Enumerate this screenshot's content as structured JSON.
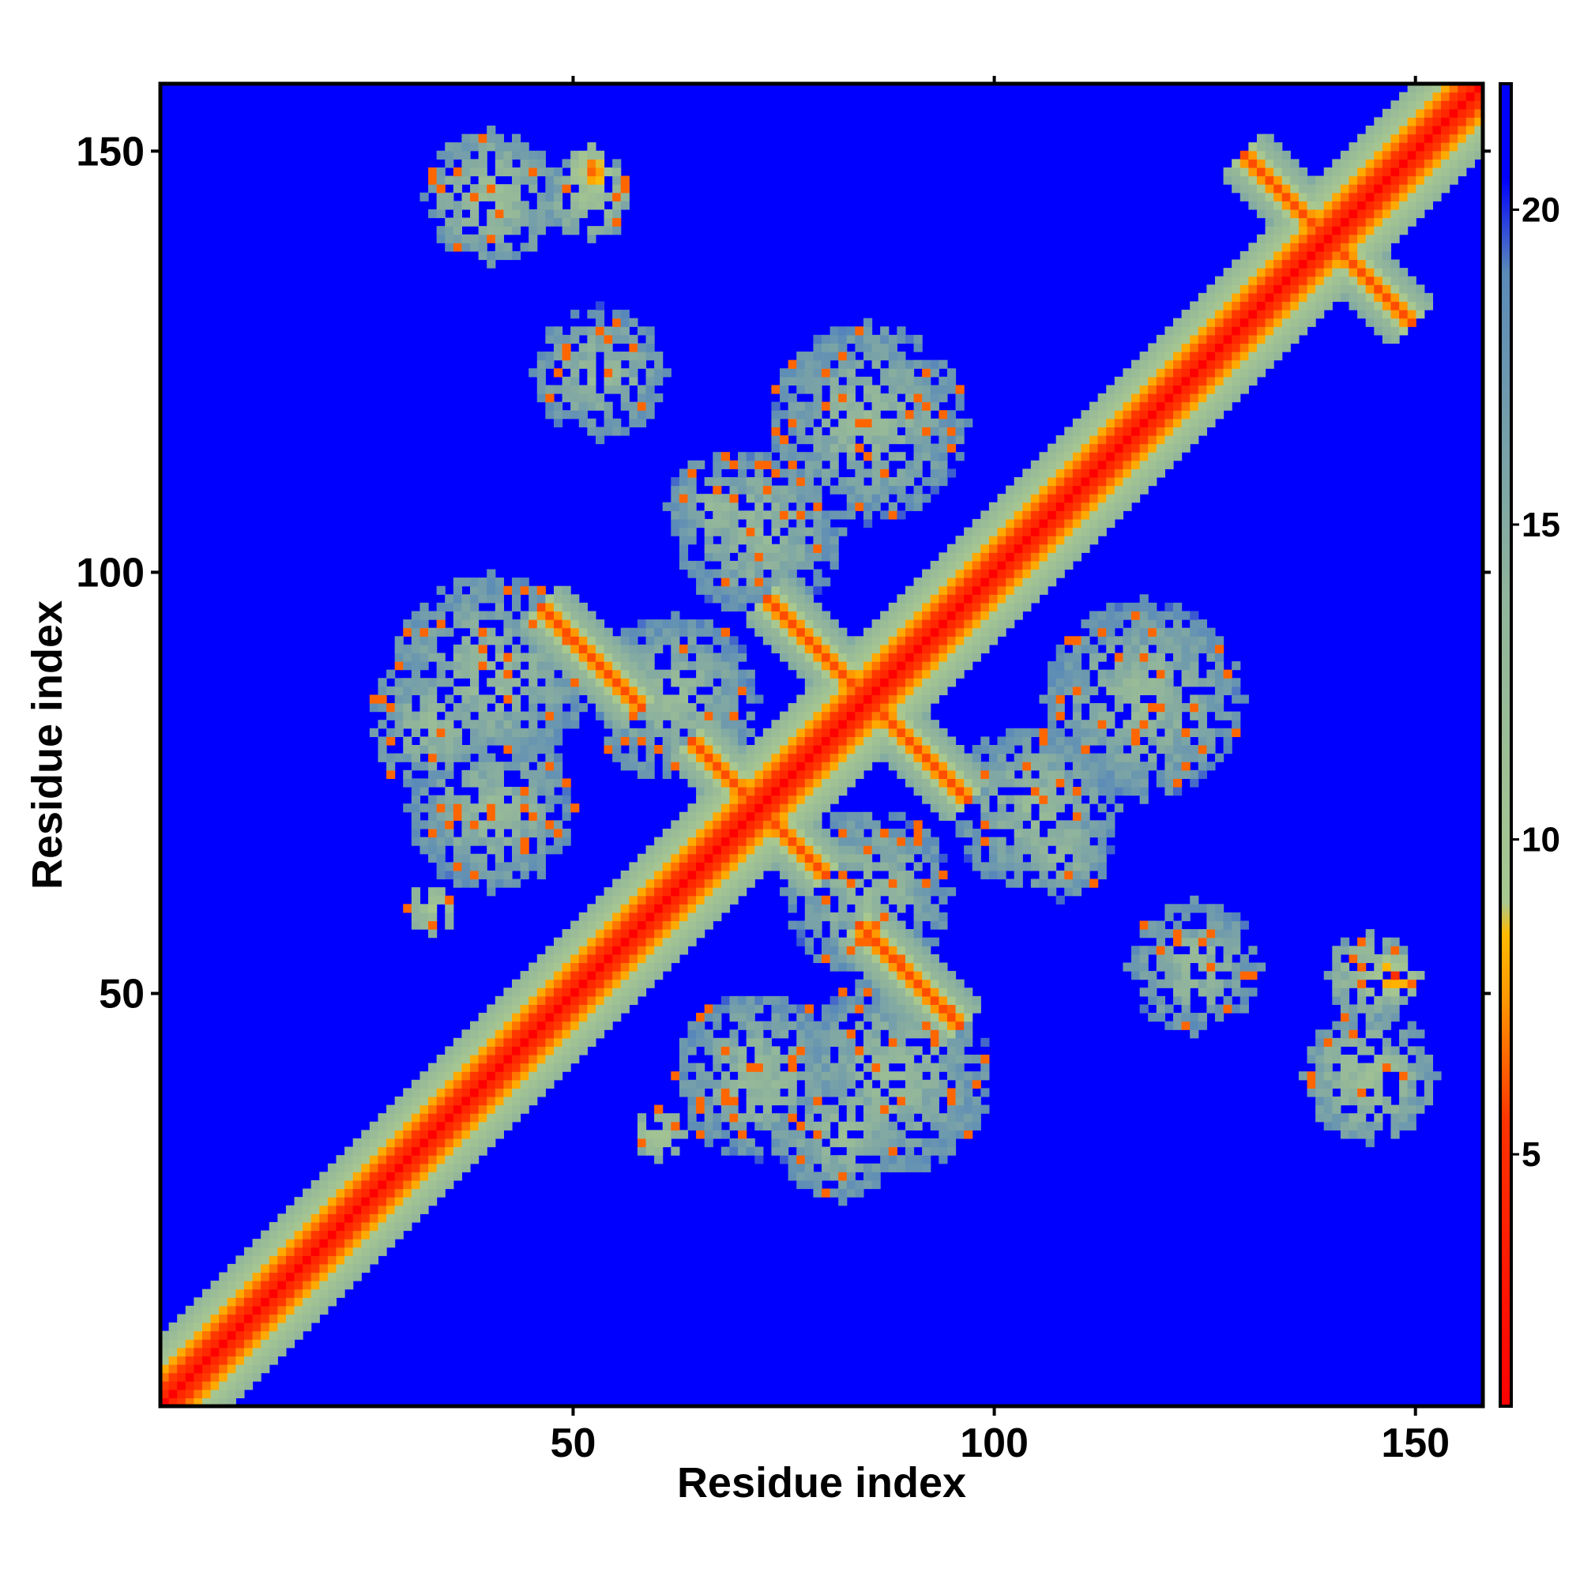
{
  "chart_data": {
    "type": "heatmap",
    "title": "",
    "xlabel": "Residue index",
    "ylabel": "Residue index",
    "xlim": [
      1,
      158
    ],
    "ylim": [
      1,
      158
    ],
    "x_ticks": [
      50,
      100,
      150
    ],
    "y_ticks": [
      50,
      100,
      150
    ],
    "colorbar": {
      "ticks": [
        5,
        10,
        15,
        20
      ],
      "range": [
        1,
        22
      ],
      "colors": [
        {
          "value": 1,
          "color": "#ff0000"
        },
        {
          "value": 5.5,
          "color": "#ff3300"
        },
        {
          "value": 7.5,
          "color": "#ff9900"
        },
        {
          "value": 8.5,
          "color": "#ffbb00"
        },
        {
          "value": 9,
          "color": "#a8c890"
        },
        {
          "value": 14,
          "color": "#8fb39c"
        },
        {
          "value": 19,
          "color": "#5a8ab8"
        },
        {
          "value": 20.5,
          "color": "#0000ff"
        },
        {
          "value": 22,
          "color": "#0000ff"
        }
      ]
    },
    "background_color": "#0000ff",
    "contact_features": [
      {
        "kind": "diagonal",
        "from": 1,
        "to": 158,
        "value": 1
      },
      {
        "kind": "band",
        "from": 1,
        "to": 158,
        "offset": 4,
        "value": 8
      },
      {
        "kind": "band",
        "from": 1,
        "to": 158,
        "offset": 8,
        "value": 13
      },
      {
        "kind": "antiparallel",
        "center": [
          85,
          85
        ],
        "half_length": 12,
        "value": 6
      },
      {
        "kind": "antiparallel",
        "center": [
          140,
          140
        ],
        "half_length": 10,
        "value": 6
      },
      {
        "kind": "antiparallel",
        "center": [
          52,
          90
        ],
        "half_length": 6,
        "value": 6
      },
      {
        "kind": "antiparallel",
        "center": [
          90,
          52
        ],
        "half_length": 6,
        "value": 6
      },
      {
        "kind": "antiparallel",
        "center": [
          72,
          72
        ],
        "half_length": 8,
        "value": 6
      },
      {
        "kind": "cluster",
        "center": [
          40,
          145
        ],
        "radius": 8,
        "value": 11
      },
      {
        "kind": "cluster",
        "center": [
          145,
          40
        ],
        "radius": 8,
        "value": 11
      },
      {
        "kind": "cluster",
        "center": [
          52,
          148
        ],
        "radius": 3,
        "value": 6
      },
      {
        "kind": "cluster",
        "center": [
          148,
          52
        ],
        "radius": 3,
        "value": 6
      },
      {
        "kind": "cluster",
        "center": [
          40,
          88
        ],
        "radius": 12,
        "value": 12
      },
      {
        "kind": "cluster",
        "center": [
          88,
          40
        ],
        "radius": 12,
        "value": 12
      },
      {
        "kind": "cluster",
        "center": [
          40,
          72
        ],
        "radius": 10,
        "value": 12
      },
      {
        "kind": "cluster",
        "center": [
          72,
          40
        ],
        "radius": 10,
        "value": 12
      },
      {
        "kind": "cluster",
        "center": [
          118,
          85
        ],
        "radius": 12,
        "value": 12
      },
      {
        "kind": "cluster",
        "center": [
          85,
          118
        ],
        "radius": 12,
        "value": 12
      },
      {
        "kind": "cluster",
        "center": [
          72,
          105
        ],
        "radius": 10,
        "value": 12
      },
      {
        "kind": "cluster",
        "center": [
          105,
          72
        ],
        "radius": 10,
        "value": 12
      },
      {
        "kind": "cluster",
        "center": [
          85,
          62
        ],
        "radius": 10,
        "value": 12
      },
      {
        "kind": "cluster",
        "center": [
          62,
          85
        ],
        "radius": 10,
        "value": 12
      },
      {
        "kind": "cluster",
        "center": [
          82,
          33
        ],
        "radius": 8,
        "value": 12
      },
      {
        "kind": "cluster",
        "center": [
          33,
          82
        ],
        "radius": 8,
        "value": 12
      },
      {
        "kind": "cluster",
        "center": [
          124,
          53
        ],
        "radius": 8,
        "value": 12
      },
      {
        "kind": "cluster",
        "center": [
          53,
          124
        ],
        "radius": 8,
        "value": 12
      },
      {
        "kind": "cluster",
        "center": [
          145,
          52
        ],
        "radius": 5,
        "value": 10
      },
      {
        "kind": "cluster",
        "center": [
          52,
          145
        ],
        "radius": 5,
        "value": 10
      },
      {
        "kind": "cluster",
        "center": [
          108,
          67
        ],
        "radius": 6,
        "value": 12
      },
      {
        "kind": "cluster",
        "center": [
          67,
          108
        ],
        "radius": 6,
        "value": 12
      },
      {
        "kind": "cluster",
        "center": [
          60,
          33
        ],
        "radius": 3,
        "value": 9
      },
      {
        "kind": "cluster",
        "center": [
          33,
          60
        ],
        "radius": 3,
        "value": 9
      }
    ]
  }
}
